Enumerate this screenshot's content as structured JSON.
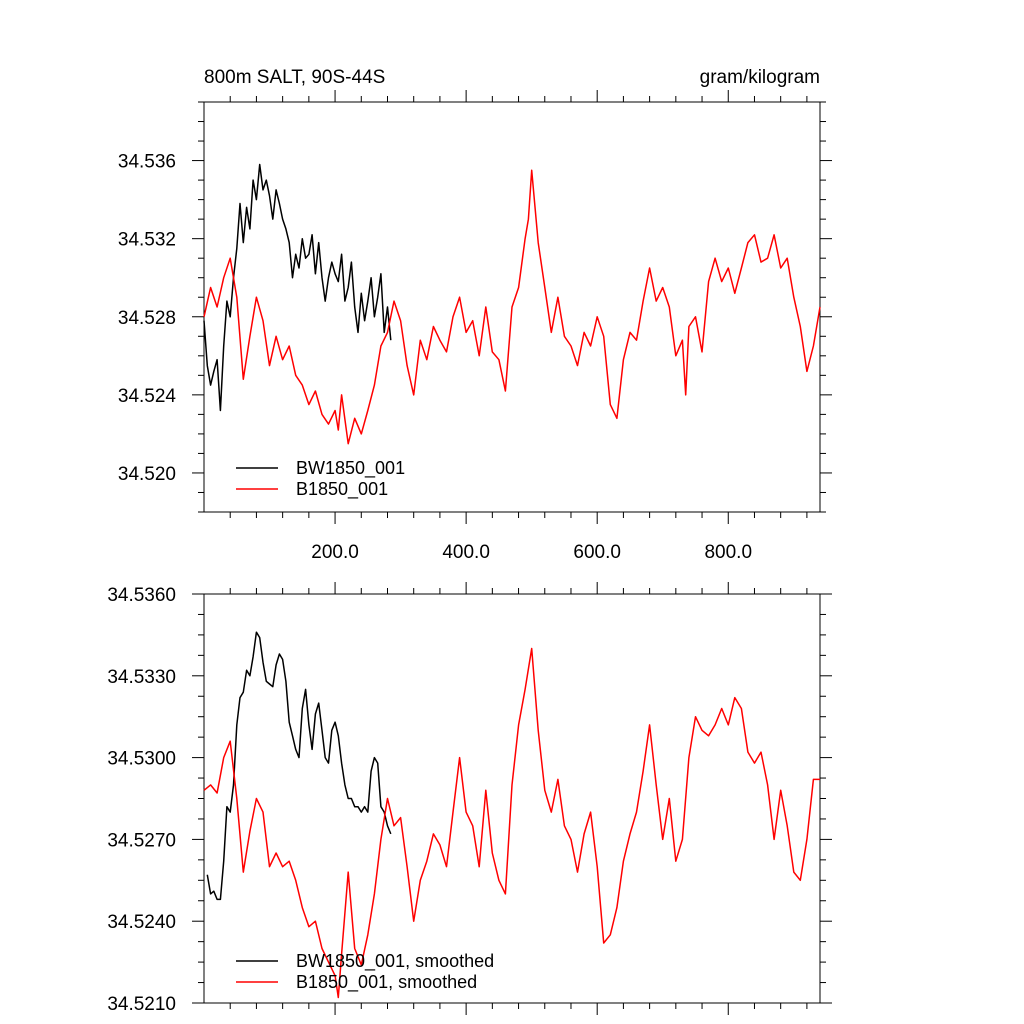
{
  "chart_data": [
    {
      "type": "line",
      "title": "800m SALT, 90S-44S",
      "units": "gram/kilogram",
      "xlim": [
        0,
        940
      ],
      "ylim": [
        34.518,
        34.539
      ],
      "x_ticks": [
        200,
        400,
        600,
        800
      ],
      "x_tick_labels": [
        "200.0",
        "400.0",
        "600.0",
        "800.0"
      ],
      "y_ticks": [
        34.52,
        34.524,
        34.528,
        34.532,
        34.536
      ],
      "y_tick_labels": [
        "34.520",
        "34.524",
        "34.528",
        "34.532",
        "34.536"
      ],
      "legend_position": "bottom-left",
      "series": [
        {
          "name": "BW1850_001",
          "color": "#000000",
          "x": [
            0,
            5,
            10,
            15,
            20,
            25,
            30,
            35,
            40,
            45,
            50,
            55,
            60,
            65,
            70,
            75,
            80,
            85,
            90,
            95,
            100,
            105,
            110,
            115,
            120,
            125,
            130,
            135,
            140,
            145,
            150,
            155,
            160,
            165,
            170,
            175,
            180,
            185,
            190,
            195,
            200,
            205,
            210,
            215,
            220,
            225,
            230,
            235,
            240,
            245,
            250,
            255,
            260,
            265,
            270,
            275,
            280,
            285
          ],
          "values": [
            34.5278,
            34.5255,
            34.5245,
            34.5252,
            34.5258,
            34.5232,
            34.5265,
            34.5288,
            34.528,
            34.53,
            34.5315,
            34.5338,
            34.5318,
            34.5336,
            34.5325,
            34.535,
            34.534,
            34.5358,
            34.5345,
            34.535,
            34.5342,
            34.533,
            34.5345,
            34.5338,
            34.533,
            34.5325,
            34.5318,
            34.53,
            34.5312,
            34.5305,
            34.532,
            34.531,
            34.5312,
            34.5322,
            34.5302,
            34.5318,
            34.53,
            34.5288,
            34.53,
            34.5308,
            34.5302,
            34.5298,
            34.5312,
            34.5288,
            34.5295,
            34.5308,
            34.5285,
            34.5272,
            34.5292,
            34.5278,
            34.5288,
            34.53,
            34.528,
            34.529,
            34.5302,
            34.5272,
            34.5285,
            34.5268
          ]
        },
        {
          "name": "B1850_001",
          "color": "#ff0000",
          "x": [
            0,
            10,
            20,
            30,
            40,
            50,
            60,
            70,
            80,
            90,
            100,
            110,
            120,
            130,
            140,
            150,
            160,
            170,
            180,
            190,
            200,
            205,
            210,
            220,
            230,
            240,
            250,
            260,
            270,
            280,
            290,
            300,
            310,
            320,
            330,
            340,
            350,
            360,
            370,
            380,
            390,
            400,
            410,
            420,
            430,
            440,
            450,
            460,
            470,
            480,
            490,
            495,
            500,
            510,
            520,
            530,
            540,
            550,
            560,
            570,
            580,
            590,
            600,
            610,
            620,
            630,
            640,
            650,
            660,
            670,
            680,
            690,
            700,
            710,
            720,
            730,
            735,
            740,
            750,
            760,
            770,
            780,
            790,
            800,
            810,
            820,
            830,
            840,
            850,
            860,
            870,
            880,
            890,
            900,
            910,
            920,
            930,
            940
          ],
          "values": [
            34.528,
            34.5295,
            34.5285,
            34.53,
            34.531,
            34.529,
            34.5248,
            34.527,
            34.529,
            34.5278,
            34.5255,
            34.527,
            34.5258,
            34.5265,
            34.525,
            34.5245,
            34.5235,
            34.5242,
            34.523,
            34.5225,
            34.5232,
            34.5222,
            34.524,
            34.5215,
            34.5228,
            34.522,
            34.5232,
            34.5245,
            34.5265,
            34.5272,
            34.5288,
            34.5278,
            34.5255,
            34.524,
            34.5268,
            34.5258,
            34.5275,
            34.5268,
            34.5262,
            34.528,
            34.529,
            34.5272,
            34.5278,
            34.526,
            34.5285,
            34.5262,
            34.5258,
            34.5242,
            34.5285,
            34.5295,
            34.532,
            34.533,
            34.5355,
            34.5318,
            34.5295,
            34.5272,
            34.529,
            34.527,
            34.5265,
            34.5255,
            34.5272,
            34.5265,
            34.528,
            34.527,
            34.5235,
            34.5228,
            34.5258,
            34.5272,
            34.5268,
            34.5288,
            34.5305,
            34.5288,
            34.5295,
            34.5285,
            34.526,
            34.5268,
            34.524,
            34.5275,
            34.528,
            34.5262,
            34.5298,
            34.531,
            34.5298,
            34.5305,
            34.5292,
            34.5305,
            34.5318,
            34.5322,
            34.5308,
            34.531,
            34.5322,
            34.5305,
            34.531,
            34.529,
            34.5275,
            34.5252,
            34.5265,
            34.5285
          ]
        }
      ]
    },
    {
      "type": "line",
      "xlim": [
        0,
        940
      ],
      "ylim": [
        34.521,
        34.536
      ],
      "y_ticks": [
        34.521,
        34.524,
        34.527,
        34.53,
        34.533,
        34.536
      ],
      "y_tick_labels": [
        "34.5210",
        "34.5240",
        "34.5270",
        "34.5300",
        "34.5330",
        "34.5360"
      ],
      "legend_position": "bottom-left",
      "series": [
        {
          "name": "BW1850_001, smoothed",
          "color": "#000000",
          "x": [
            5,
            10,
            15,
            20,
            25,
            30,
            35,
            40,
            45,
            50,
            55,
            60,
            65,
            70,
            75,
            80,
            85,
            90,
            95,
            100,
            105,
            110,
            115,
            120,
            125,
            130,
            135,
            140,
            145,
            150,
            155,
            160,
            165,
            170,
            175,
            180,
            185,
            190,
            195,
            200,
            205,
            210,
            215,
            220,
            225,
            230,
            235,
            240,
            245,
            250,
            255,
            260,
            265,
            270,
            275,
            280,
            285
          ],
          "values": [
            34.5257,
            34.525,
            34.5251,
            34.5248,
            34.5248,
            34.5262,
            34.5282,
            34.528,
            34.529,
            34.5312,
            34.5322,
            34.5324,
            34.5332,
            34.533,
            34.5337,
            34.5346,
            34.5344,
            34.5335,
            34.5328,
            34.5327,
            34.5326,
            34.5334,
            34.5338,
            34.5336,
            34.5328,
            34.5313,
            34.5308,
            34.5303,
            34.53,
            34.5318,
            34.5325,
            34.5312,
            34.5303,
            34.5316,
            34.532,
            34.531,
            34.53,
            34.5298,
            34.531,
            34.5313,
            34.5308,
            34.5298,
            34.529,
            34.5285,
            34.5285,
            34.5282,
            34.5282,
            34.528,
            34.5282,
            34.528,
            34.5295,
            34.53,
            34.5298,
            34.5282,
            34.528,
            34.5275,
            34.5272
          ]
        },
        {
          "name": "B1850_001, smoothed",
          "color": "#ff0000",
          "x": [
            0,
            10,
            20,
            30,
            40,
            50,
            60,
            70,
            80,
            90,
            100,
            110,
            120,
            130,
            140,
            150,
            160,
            170,
            180,
            190,
            200,
            205,
            210,
            220,
            230,
            240,
            250,
            260,
            270,
            280,
            290,
            300,
            310,
            320,
            330,
            340,
            350,
            360,
            370,
            380,
            390,
            400,
            410,
            420,
            430,
            440,
            450,
            460,
            470,
            480,
            490,
            500,
            510,
            520,
            530,
            540,
            550,
            560,
            570,
            580,
            590,
            600,
            610,
            620,
            630,
            640,
            650,
            660,
            670,
            680,
            690,
            700,
            710,
            720,
            730,
            740,
            750,
            760,
            770,
            780,
            790,
            800,
            810,
            820,
            830,
            840,
            850,
            860,
            870,
            880,
            890,
            900,
            910,
            920,
            930,
            940
          ],
          "values": [
            34.5288,
            34.529,
            34.5287,
            34.53,
            34.5306,
            34.5285,
            34.5258,
            34.5273,
            34.5285,
            34.528,
            34.526,
            34.5265,
            34.526,
            34.5262,
            34.5255,
            34.5245,
            34.5238,
            34.524,
            34.523,
            34.5225,
            34.522,
            34.5212,
            34.5228,
            34.5258,
            34.523,
            34.5224,
            34.5235,
            34.525,
            34.527,
            34.5285,
            34.5275,
            34.5278,
            34.526,
            34.524,
            34.5255,
            34.5262,
            34.5272,
            34.5268,
            34.526,
            34.528,
            34.53,
            34.528,
            34.5275,
            34.526,
            34.5288,
            34.5265,
            34.5255,
            34.525,
            34.529,
            34.5312,
            34.5325,
            34.534,
            34.531,
            34.5288,
            34.528,
            34.5292,
            34.5275,
            34.527,
            34.5258,
            34.5272,
            34.528,
            34.526,
            34.5232,
            34.5235,
            34.5245,
            34.5262,
            34.5272,
            34.528,
            34.5295,
            34.5312,
            34.529,
            34.527,
            34.5285,
            34.5262,
            34.527,
            34.53,
            34.5315,
            34.531,
            34.5308,
            34.5312,
            34.5318,
            34.5312,
            34.5322,
            34.5318,
            34.5302,
            34.5298,
            34.5302,
            34.529,
            34.527,
            34.5288,
            34.5275,
            34.5258,
            34.5255,
            34.527,
            34.5292,
            34.5292
          ]
        }
      ]
    }
  ]
}
